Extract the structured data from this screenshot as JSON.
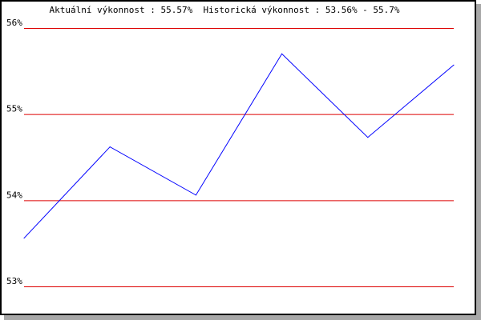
{
  "chart_data": {
    "type": "line",
    "title": "Aktuální výkonnost : 55.57%  Historická výkonnost : 53.56% - 55.7%",
    "ylim": [
      53,
      56
    ],
    "yticks": [
      "53%",
      "54%",
      "55%",
      "56%"
    ],
    "ytick_values": [
      53,
      54,
      55,
      56
    ],
    "grid": true,
    "x": [
      1,
      2,
      3,
      4,
      5,
      6
    ],
    "series": [
      {
        "values": [
          53.56,
          54.62,
          54.06,
          55.7,
          54.73,
          55.57
        ],
        "color": "#0000ff"
      }
    ],
    "grid_color": "#dd0000"
  }
}
